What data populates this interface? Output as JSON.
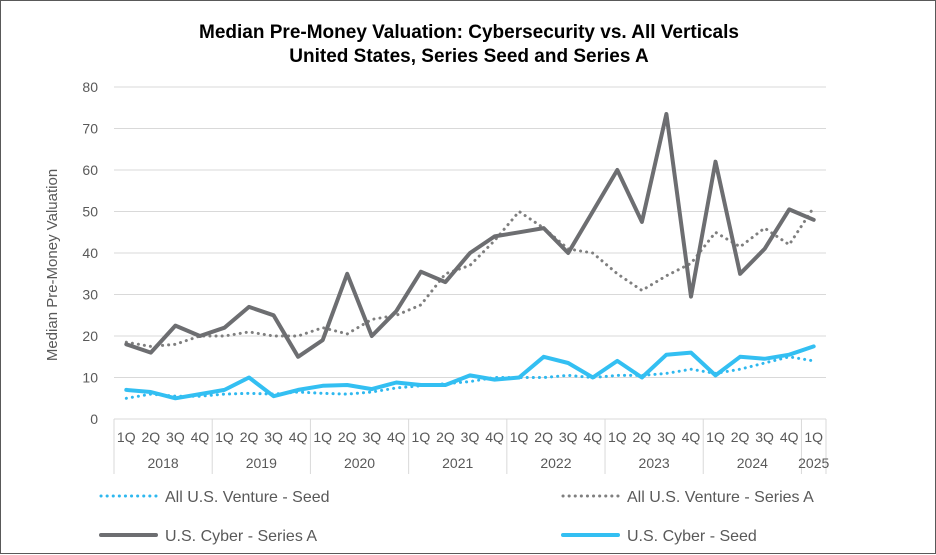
{
  "chart_data": {
    "type": "line",
    "title_line1": "Median Pre-Money Valuation: Cybersecurity vs. All Verticals",
    "title_line2": "United States, Series Seed and Series A",
    "ylabel": "Median Pre-Money Valuation",
    "ylim": [
      0,
      80
    ],
    "yticks": [
      0,
      10,
      20,
      30,
      40,
      50,
      60,
      70,
      80
    ],
    "grid": "horizontal",
    "legend_position": "bottom",
    "x": [
      "1Q 2018",
      "2Q 2018",
      "3Q 2018",
      "4Q 2018",
      "1Q 2019",
      "2Q 2019",
      "3Q 2019",
      "4Q 2019",
      "1Q 2020",
      "2Q 2020",
      "3Q 2020",
      "4Q 2020",
      "1Q 2021",
      "2Q 2021",
      "3Q 2021",
      "4Q 2021",
      "1Q 2022",
      "2Q 2022",
      "3Q 2022",
      "4Q 2022",
      "1Q 2023",
      "2Q 2023",
      "3Q 2023",
      "4Q 2023",
      "1Q 2024",
      "2Q 2024",
      "3Q 2024",
      "4Q 2024",
      "1Q 2025"
    ],
    "quarter_labels": [
      "1Q",
      "2Q",
      "3Q",
      "4Q",
      "1Q",
      "2Q",
      "3Q",
      "4Q",
      "1Q",
      "2Q",
      "3Q",
      "4Q",
      "1Q",
      "2Q",
      "3Q",
      "4Q",
      "1Q",
      "2Q",
      "3Q",
      "4Q",
      "1Q",
      "2Q",
      "3Q",
      "4Q",
      "1Q",
      "2Q",
      "3Q",
      "4Q",
      "1Q"
    ],
    "year_groups": [
      {
        "label": "2018",
        "start": 0,
        "count": 4
      },
      {
        "label": "2019",
        "start": 4,
        "count": 4
      },
      {
        "label": "2020",
        "start": 8,
        "count": 4
      },
      {
        "label": "2021",
        "start": 12,
        "count": 4
      },
      {
        "label": "2022",
        "start": 16,
        "count": 4
      },
      {
        "label": "2023",
        "start": 20,
        "count": 4
      },
      {
        "label": "2024",
        "start": 24,
        "count": 4
      },
      {
        "label": "2025",
        "start": 28,
        "count": 1
      }
    ],
    "series": [
      {
        "name": "All U.S. Venture - Seed",
        "color": "#2EB8EF",
        "style": "dotted",
        "values": [
          5,
          6,
          5.5,
          5.5,
          6,
          6.2,
          6,
          6.5,
          6.2,
          6,
          6.5,
          7.5,
          8,
          8.5,
          9,
          10,
          10,
          10,
          10.5,
          10,
          10.5,
          10.5,
          11,
          12,
          11,
          12,
          13.5,
          15,
          14
        ]
      },
      {
        "name": "All U.S. Venture - Series A",
        "color": "#7F7F7F",
        "style": "dotted",
        "values": [
          18.5,
          17.5,
          18,
          20,
          20,
          21,
          20,
          20,
          22,
          20.5,
          24,
          25,
          27.5,
          35,
          37,
          43,
          50,
          46,
          41,
          40,
          35,
          31,
          34.5,
          37.5,
          45,
          41.5,
          46,
          42,
          51
        ]
      },
      {
        "name": "U.S. Cyber - Series A",
        "color": "#6D6E71",
        "style": "solid",
        "values": [
          18,
          16,
          22.5,
          20,
          22,
          27,
          25,
          15,
          19,
          35,
          20,
          26,
          35.5,
          33,
          40,
          44,
          45,
          46,
          40,
          50,
          60,
          47.5,
          73.5,
          29.5,
          62,
          35,
          41,
          50.5,
          48
        ]
      },
      {
        "name": "U.S. Cyber - Seed",
        "color": "#33BFF2",
        "style": "solid",
        "values": [
          7,
          6.5,
          5,
          6,
          7,
          10,
          5.5,
          7,
          8,
          8.2,
          7.2,
          8.8,
          8.2,
          8.2,
          10.5,
          9.5,
          10,
          15,
          13.5,
          10,
          14,
          10,
          15.5,
          16,
          10.5,
          15,
          14.5,
          15.5,
          17.5
        ]
      }
    ]
  }
}
